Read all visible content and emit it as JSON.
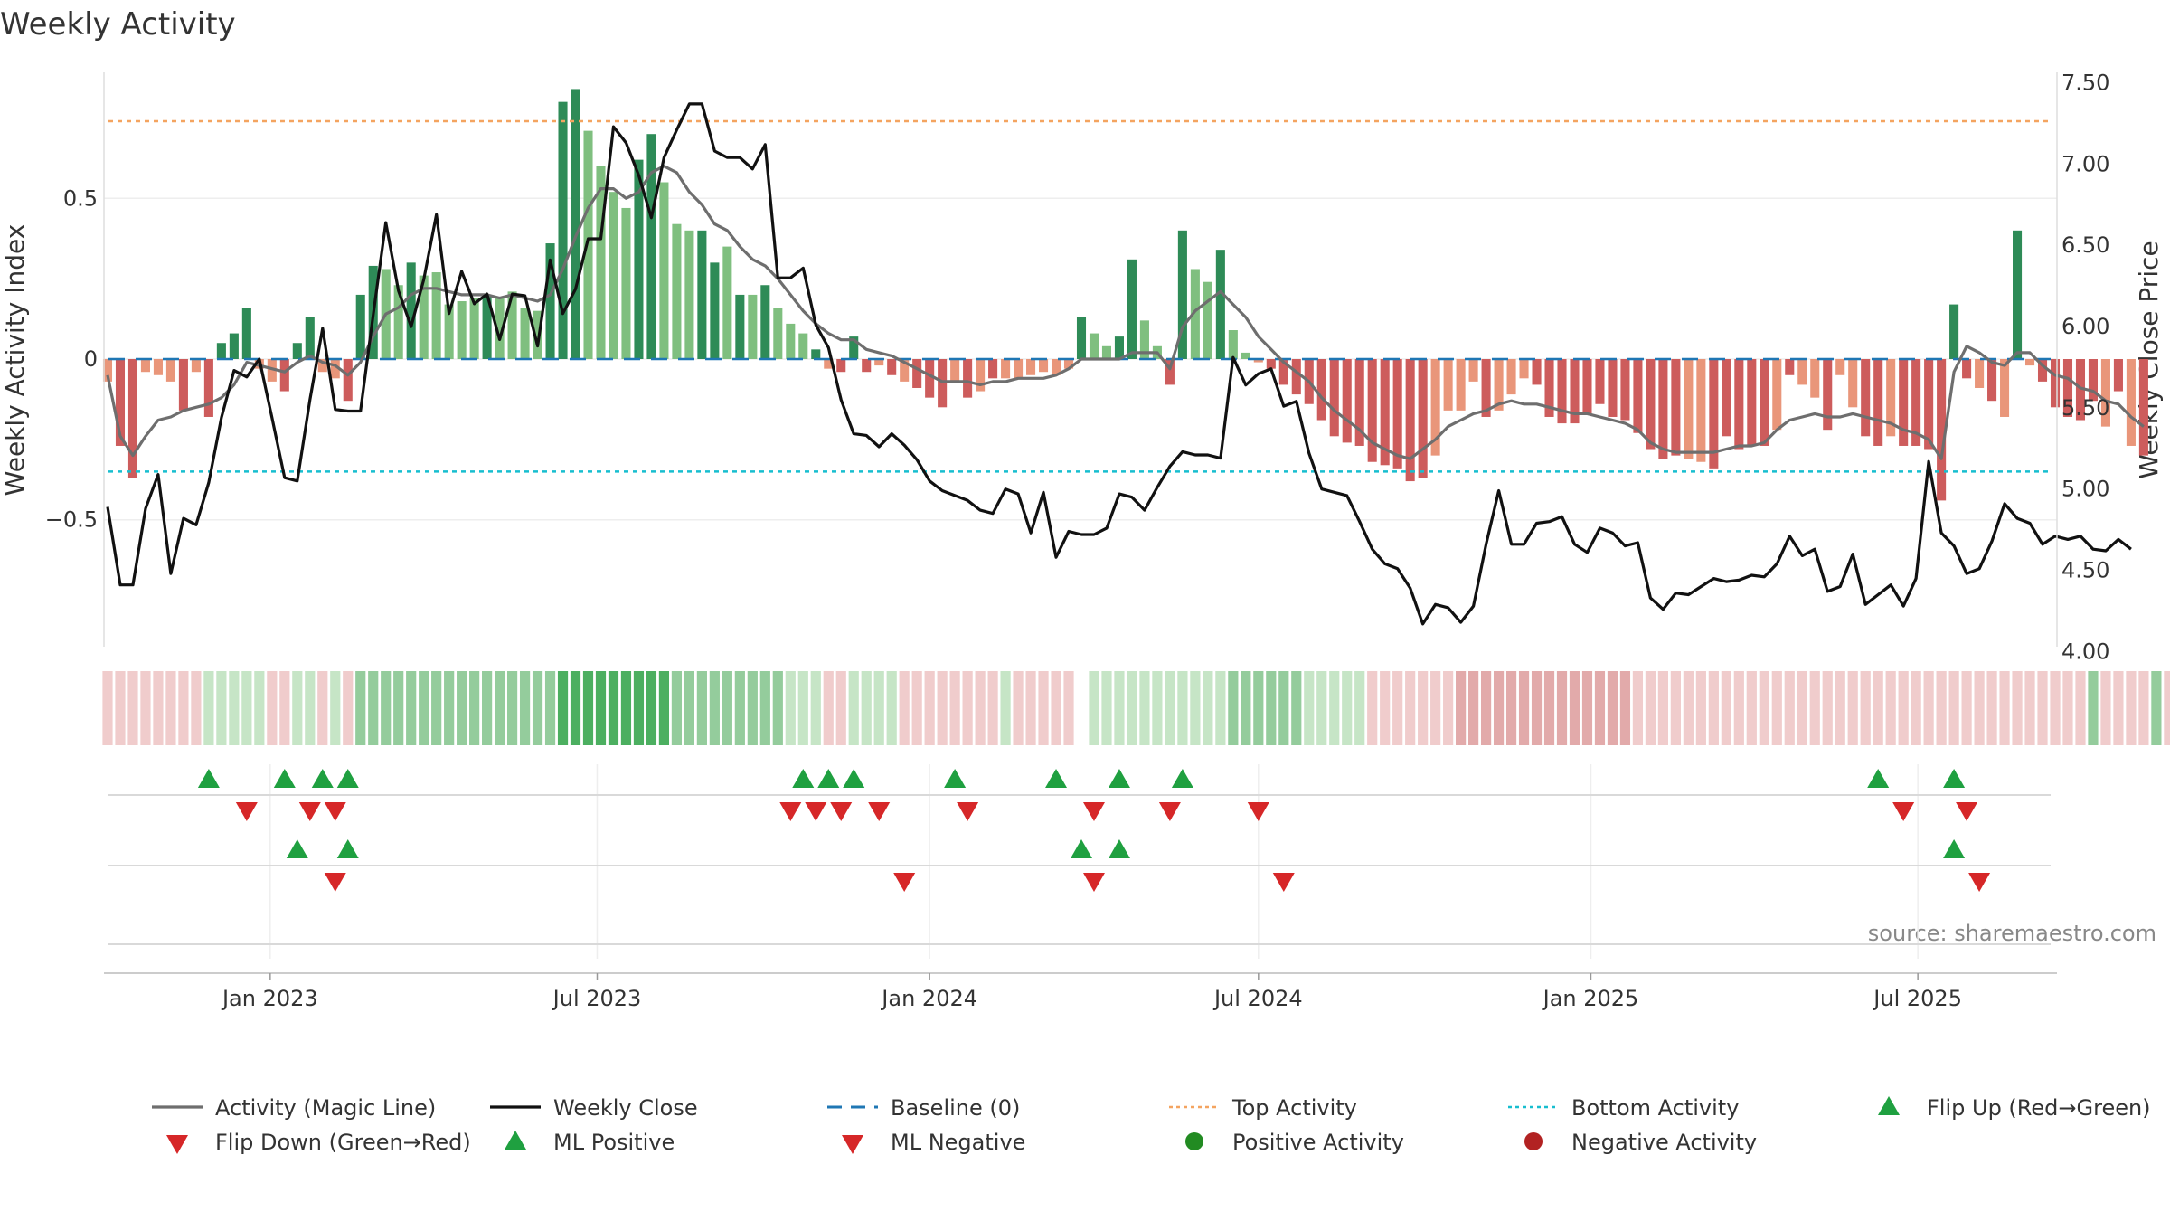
{
  "colors": {
    "bg": "#ffffff",
    "grid": "#eeeeee",
    "sep": "#d9d9d9",
    "text": "#333333",
    "pos_dark": "#2e8b57",
    "pos_light": "#7fbf7f",
    "neg_dark": "#cd5c5c",
    "neg_light": "#e9967a",
    "magic": "#6e6e6e",
    "close": "#111111",
    "baseline": "#1f77b4",
    "top_line": "#f4a460",
    "bottom_line": "#17becf",
    "tri_up": "#1fa040",
    "tri_down": "#d62728",
    "dot_pos": "#228b22",
    "dot_neg": "#b22222"
  },
  "chart_data": {
    "type": "bar",
    "title": "Weekly Activity",
    "ylabel_left": "Weekly Activity Index",
    "ylabel_right": "Weekly Close Price",
    "source": "source: sharemaestro.com",
    "x_start": "2022-10-03",
    "x_step_days": 7,
    "x_range": [
      "2022-10-01",
      "2025-09-16"
    ],
    "left_ylim": [
      -0.92,
      0.92
    ],
    "left_ticks": [
      {
        "v": 0.5,
        "label": "0.5"
      },
      {
        "v": 0,
        "label": "0"
      },
      {
        "v": -0.5,
        "label": "−0.5"
      }
    ],
    "right_ylim": [
      3.98,
      7.62
    ],
    "right_ticks": [
      {
        "v": 7.5,
        "label": "7.50"
      },
      {
        "v": 7.0,
        "label": "7.00"
      },
      {
        "v": 6.5,
        "label": "6.50"
      },
      {
        "v": 6.0,
        "label": "6.00"
      },
      {
        "v": 5.5,
        "label": "5.50"
      },
      {
        "v": 5.0,
        "label": "5.00"
      },
      {
        "v": 4.5,
        "label": "4.50"
      },
      {
        "v": 4.0,
        "label": "4.00"
      }
    ],
    "x_ticks": [
      {
        "date": "2023-01-01",
        "label": "Jan 2023"
      },
      {
        "date": "2023-07-01",
        "label": "Jul 2023"
      },
      {
        "date": "2024-01-01",
        "label": "Jan 2024"
      },
      {
        "date": "2024-07-01",
        "label": "Jul 2024"
      },
      {
        "date": "2025-01-01",
        "label": "Jan 2025"
      },
      {
        "date": "2025-07-01",
        "label": "Jul 2025"
      }
    ],
    "top_activity": 0.74,
    "bottom_activity": -0.35,
    "activity_values": [
      -0.07,
      -0.27,
      -0.37,
      -0.04,
      -0.05,
      -0.07,
      -0.16,
      -0.04,
      -0.18,
      0.05,
      0.08,
      0.16,
      -0.03,
      -0.07,
      -0.1,
      0.05,
      0.13,
      -0.04,
      -0.06,
      -0.13,
      0.2,
      0.29,
      0.28,
      0.23,
      0.3,
      0.26,
      0.27,
      0.17,
      0.18,
      0.19,
      0.2,
      0.19,
      0.21,
      0.16,
      0.15,
      0.36,
      0.8,
      0.84,
      0.71,
      0.6,
      0.52,
      0.47,
      0.62,
      0.7,
      0.55,
      0.42,
      0.4,
      0.4,
      0.3,
      0.35,
      0.2,
      0.2,
      0.23,
      0.16,
      0.11,
      0.08,
      0.03,
      -0.03,
      -0.04,
      0.07,
      -0.04,
      -0.02,
      -0.05,
      -0.07,
      -0.09,
      -0.12,
      -0.15,
      -0.07,
      -0.12,
      -0.1,
      -0.06,
      -0.06,
      -0.06,
      -0.05,
      -0.04,
      -0.05,
      -0.03,
      0.13,
      0.08,
      0.04,
      0.07,
      0.31,
      0.12,
      0.04,
      -0.08,
      0.4,
      0.28,
      0.24,
      0.34,
      0.09,
      0.02,
      -0.01,
      -0.03,
      -0.08,
      -0.11,
      -0.14,
      -0.19,
      -0.24,
      -0.26,
      -0.27,
      -0.32,
      -0.33,
      -0.34,
      -0.38,
      -0.37,
      -0.3,
      -0.16,
      -0.16,
      -0.07,
      -0.18,
      -0.16,
      -0.11,
      -0.06,
      -0.08,
      -0.18,
      -0.2,
      -0.2,
      -0.17,
      -0.14,
      -0.18,
      -0.19,
      -0.23,
      -0.28,
      -0.31,
      -0.3,
      -0.31,
      -0.32,
      -0.34,
      -0.24,
      -0.28,
      -0.27,
      -0.27,
      -0.22,
      -0.05,
      -0.08,
      -0.12,
      -0.22,
      -0.05,
      -0.15,
      -0.24,
      -0.27,
      -0.24,
      -0.27,
      -0.27,
      -0.28,
      -0.44,
      0.17,
      -0.06,
      -0.09,
      -0.13,
      -0.18,
      0.4,
      -0.02,
      -0.07,
      -0.15,
      -0.18,
      -0.19,
      -0.13,
      -0.21,
      -0.1,
      -0.27,
      -0.3
    ],
    "activity_shades": [
      "light",
      "dark",
      "dark",
      "light",
      "light",
      "light",
      "dark",
      "light",
      "dark",
      "dark",
      "dark",
      "dark",
      "light",
      "light",
      "dark",
      "dark",
      "dark",
      "light",
      "light",
      "dark",
      "dark",
      "dark",
      "light",
      "light",
      "dark",
      "light",
      "light",
      "light",
      "light",
      "light",
      "dark",
      "light",
      "light",
      "light",
      "light",
      "dark",
      "dark",
      "dark",
      "light",
      "light",
      "light",
      "light",
      "dark",
      "dark",
      "light",
      "light",
      "light",
      "dark",
      "dark",
      "light",
      "dark",
      "light",
      "dark",
      "light",
      "light",
      "light",
      "dark",
      "light",
      "dark",
      "dark",
      "dark",
      "light",
      "dark",
      "light",
      "dark",
      "dark",
      "dark",
      "light",
      "dark",
      "light",
      "dark",
      "light",
      "light",
      "light",
      "light",
      "light",
      "light",
      "dark",
      "light",
      "light",
      "dark",
      "dark",
      "light",
      "light",
      "dark",
      "dark",
      "light",
      "light",
      "dark",
      "light",
      "light",
      "light",
      "dark",
      "dark",
      "dark",
      "dark",
      "dark",
      "dark",
      "dark",
      "dark",
      "dark",
      "dark",
      "dark",
      "dark",
      "dark",
      "light",
      "light",
      "light",
      "light",
      "dark",
      "light",
      "light",
      "light",
      "dark",
      "dark",
      "dark",
      "dark",
      "dark",
      "dark",
      "dark",
      "dark",
      "dark",
      "dark",
      "dark",
      "dark",
      "light",
      "light",
      "dark",
      "dark",
      "dark",
      "dark",
      "dark",
      "light",
      "dark",
      "light",
      "light",
      "dark",
      "light",
      "light",
      "dark",
      "dark",
      "light",
      "dark",
      "dark",
      "dark",
      "dark",
      "dark",
      "dark",
      "light",
      "dark",
      "light",
      "dark",
      "light",
      "dark",
      "dark",
      "dark",
      "dark",
      "dark",
      "light",
      "dark",
      "light",
      "dark",
      "dark",
      "dark"
    ],
    "magic_line": [
      -0.05,
      -0.24,
      -0.3,
      -0.24,
      -0.19,
      -0.18,
      -0.16,
      -0.15,
      -0.14,
      -0.12,
      -0.08,
      -0.01,
      -0.02,
      -0.03,
      -0.04,
      -0.01,
      0.01,
      -0.01,
      -0.02,
      -0.05,
      -0.01,
      0.07,
      0.14,
      0.16,
      0.2,
      0.22,
      0.22,
      0.21,
      0.2,
      0.2,
      0.2,
      0.19,
      0.2,
      0.19,
      0.18,
      0.2,
      0.28,
      0.38,
      0.47,
      0.53,
      0.53,
      0.5,
      0.52,
      0.58,
      0.6,
      0.58,
      0.52,
      0.48,
      0.42,
      0.4,
      0.35,
      0.31,
      0.29,
      0.25,
      0.2,
      0.15,
      0.11,
      0.08,
      0.06,
      0.06,
      0.03,
      0.02,
      0.01,
      -0.01,
      -0.03,
      -0.05,
      -0.07,
      -0.07,
      -0.07,
      -0.08,
      -0.07,
      -0.07,
      -0.06,
      -0.06,
      -0.06,
      -0.05,
      -0.03,
      0.0,
      0.0,
      0.0,
      0.0,
      0.02,
      0.02,
      0.02,
      -0.03,
      0.1,
      0.15,
      0.18,
      0.21,
      0.17,
      0.13,
      0.07,
      0.03,
      -0.01,
      -0.04,
      -0.07,
      -0.12,
      -0.16,
      -0.19,
      -0.22,
      -0.26,
      -0.28,
      -0.3,
      -0.31,
      -0.28,
      -0.25,
      -0.21,
      -0.19,
      -0.17,
      -0.16,
      -0.14,
      -0.13,
      -0.14,
      -0.14,
      -0.15,
      -0.16,
      -0.17,
      -0.17,
      -0.18,
      -0.19,
      -0.2,
      -0.22,
      -0.26,
      -0.28,
      -0.29,
      -0.29,
      -0.29,
      -0.29,
      -0.28,
      -0.27,
      -0.27,
      -0.26,
      -0.22,
      -0.19,
      -0.18,
      -0.17,
      -0.18,
      -0.18,
      -0.17,
      -0.18,
      -0.19,
      -0.2,
      -0.22,
      -0.23,
      -0.25,
      -0.31,
      -0.04,
      0.04,
      0.02,
      -0.01,
      -0.02,
      0.02,
      0.02,
      -0.02,
      -0.05,
      -0.06,
      -0.09,
      -0.1,
      -0.13,
      -0.14,
      -0.18,
      -0.21
    ],
    "close_values": [
      4.89,
      4.41,
      4.41,
      4.88,
      5.09,
      4.48,
      4.82,
      4.78,
      5.04,
      5.44,
      5.73,
      5.69,
      5.8,
      5.44,
      5.07,
      5.05,
      5.55,
      5.99,
      5.49,
      5.48,
      5.48,
      6.07,
      6.64,
      6.22,
      6.0,
      6.29,
      6.69,
      6.08,
      6.34,
      6.14,
      6.2,
      5.92,
      6.2,
      6.19,
      5.88,
      6.41,
      6.08,
      6.23,
      6.54,
      6.54,
      7.23,
      7.13,
      6.93,
      6.67,
      7.04,
      7.21,
      7.37,
      7.37,
      7.08,
      7.04,
      7.04,
      6.97,
      7.12,
      6.3,
      6.3,
      6.36,
      6.01,
      5.87,
      5.55,
      5.34,
      5.33,
      5.26,
      5.34,
      5.27,
      5.18,
      5.05,
      4.99,
      4.96,
      4.93,
      4.87,
      4.85,
      5.0,
      4.97,
      4.73,
      4.98,
      4.58,
      4.74,
      4.72,
      4.72,
      4.76,
      4.97,
      4.95,
      4.87,
      5.01,
      5.14,
      5.23,
      5.21,
      5.21,
      5.19,
      5.81,
      5.64,
      5.71,
      5.74,
      5.51,
      5.54,
      5.22,
      5.0,
      4.98,
      4.96,
      4.8,
      4.63,
      4.54,
      4.51,
      4.39,
      4.17,
      4.29,
      4.27,
      4.18,
      4.28,
      4.66,
      4.99,
      4.66,
      4.66,
      4.79,
      4.8,
      4.83,
      4.66,
      4.61,
      4.76,
      4.73,
      4.65,
      4.67,
      4.33,
      4.26,
      4.36,
      4.35,
      4.4,
      4.45,
      4.43,
      4.44,
      4.47,
      4.46,
      4.54,
      4.71,
      4.59,
      4.63,
      4.37,
      4.4,
      4.6,
      4.29,
      4.35,
      4.41,
      4.28,
      4.45,
      5.17,
      4.73,
      4.65,
      4.48,
      4.51,
      4.68,
      4.91,
      4.82,
      4.79,
      4.66,
      4.71,
      4.69,
      4.71,
      4.63,
      4.62,
      4.69,
      4.63
    ],
    "state_strip": [
      "r1",
      "r1",
      "r1",
      "r1",
      "r1",
      "r1",
      "r1",
      "r1",
      "g1",
      "g1",
      "g1",
      "g1",
      "g1",
      "r1",
      "r1",
      "g1",
      "g1",
      "r1",
      "g1",
      "r1",
      "g2",
      "g2",
      "g2",
      "g2",
      "g2",
      "g2",
      "g2",
      "g2",
      "g2",
      "g2",
      "g2",
      "g2",
      "g2",
      "g2",
      "g2",
      "g2",
      "g3",
      "g3",
      "g3",
      "g3",
      "g3",
      "g3",
      "g3",
      "g3",
      "g3",
      "g2",
      "g2",
      "g2",
      "g2",
      "g2",
      "g2",
      "g2",
      "g2",
      "g2",
      "g1",
      "g1",
      "g1",
      "r1",
      "r1",
      "g1",
      "g1",
      "g1",
      "g1",
      "r1",
      "r1",
      "r1",
      "r1",
      "r1",
      "r1",
      "r1",
      "r1",
      "g1",
      "r1",
      "r1",
      "r1",
      "r1",
      "r1",
      "none",
      "g1",
      "g1",
      "g1",
      "g1",
      "g1",
      "g1",
      "g1",
      "g1",
      "g1",
      "g1",
      "g1",
      "g2",
      "g2",
      "g2",
      "g2",
      "g2",
      "g2",
      "g1",
      "g1",
      "g1",
      "g1",
      "g1",
      "r1",
      "r1",
      "r1",
      "r1",
      "r1",
      "r1",
      "r1",
      "r2",
      "r2",
      "r2",
      "r2",
      "r2",
      "r2",
      "r2",
      "r2",
      "r2",
      "r2",
      "r2",
      "r2",
      "r2",
      "r2",
      "r1",
      "r1",
      "r1",
      "r1",
      "r1",
      "r1",
      "r1",
      "r1",
      "r1",
      "r1",
      "r1",
      "r1",
      "r1",
      "r1",
      "r1",
      "r1",
      "r1",
      "r1",
      "r1",
      "r1",
      "r1",
      "r1",
      "r1",
      "r1",
      "r1",
      "r1",
      "r1",
      "r1",
      "r1",
      "r1",
      "r1",
      "r1",
      "r1",
      "r1",
      "r1",
      "r1",
      "g2",
      "r1",
      "r1",
      "r1",
      "r1",
      "g2",
      "r1",
      "r1",
      "r1",
      "r1",
      "r1",
      "r1",
      "r1",
      "r1",
      "r1",
      "r1"
    ],
    "flip_up_weeks": [
      8,
      14,
      17,
      19,
      55,
      57,
      59,
      67,
      75,
      80,
      85,
      140,
      146
    ],
    "flip_down_weeks": [
      11,
      16,
      18,
      54,
      56,
      58,
      61,
      68,
      78,
      84,
      91,
      142,
      147
    ],
    "ml_positive_weeks": [
      15,
      19,
      77,
      80,
      146
    ],
    "ml_negative_weeks": [
      18,
      63,
      78,
      93,
      148
    ],
    "positive_activity_weeks": [],
    "negative_activity_weeks": [],
    "legend": [
      {
        "label": "Activity (Magic Line)",
        "kind": "line",
        "color": "#6e6e6e"
      },
      {
        "label": "Weekly Close",
        "kind": "line",
        "color": "#111111"
      },
      {
        "label": "Baseline (0)",
        "kind": "dash",
        "color": "#1f77b4"
      },
      {
        "label": "Top Activity",
        "kind": "dot",
        "color": "#f4a460"
      },
      {
        "label": "Bottom Activity",
        "kind": "dot",
        "color": "#17becf"
      },
      {
        "label": "Flip Up (Red→Green)",
        "kind": "tri-up",
        "color": "#1fa040"
      },
      {
        "label": "Flip Down (Green→Red)",
        "kind": "tri-down",
        "color": "#d62728"
      },
      {
        "label": "ML Positive",
        "kind": "tri-up",
        "color": "#1fa040"
      },
      {
        "label": "ML Negative",
        "kind": "tri-down",
        "color": "#d62728"
      },
      {
        "label": "Positive Activity",
        "kind": "circle",
        "color": "#228b22"
      },
      {
        "label": "Negative Activity",
        "kind": "circle",
        "color": "#b22222"
      }
    ]
  }
}
